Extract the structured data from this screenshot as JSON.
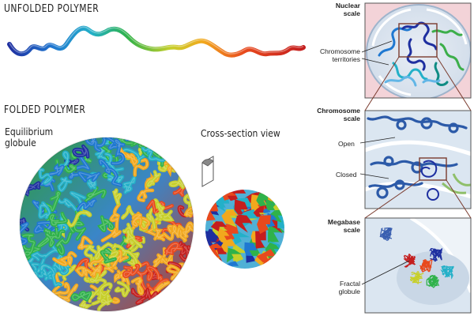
{
  "headings": {
    "unfolded": "UNFOLDED POLYMER",
    "folded": "FOLDED POLYMER"
  },
  "folded": {
    "equilibrium_line1": "Equilibrium",
    "equilibrium_line2": "globule",
    "cross_section": "Cross-section view"
  },
  "panels": {
    "nuclear": {
      "title_line1": "Nuclear",
      "title_line2": "scale",
      "label_line1": "Chromosome",
      "label_line2": "territories"
    },
    "chromosome": {
      "title_line1": "Chromosome",
      "title_line2": "scale",
      "open": "Open",
      "closed": "Closed"
    },
    "megabase": {
      "title_line1": "Megabase",
      "title_line2": "scale",
      "label_line1": "Fractal",
      "label_line2": "globule"
    }
  },
  "colors": {
    "spectrum": [
      "#1e2fa0",
      "#1f78d1",
      "#23b0c8",
      "#2fb24a",
      "#c7cf2a",
      "#f2a81d",
      "#e8491d",
      "#c41e1e"
    ],
    "panel_bg": "#dbe6f1",
    "panel_border": "#7a3b2e",
    "nucleus_bg": "#f3d3d8"
  }
}
